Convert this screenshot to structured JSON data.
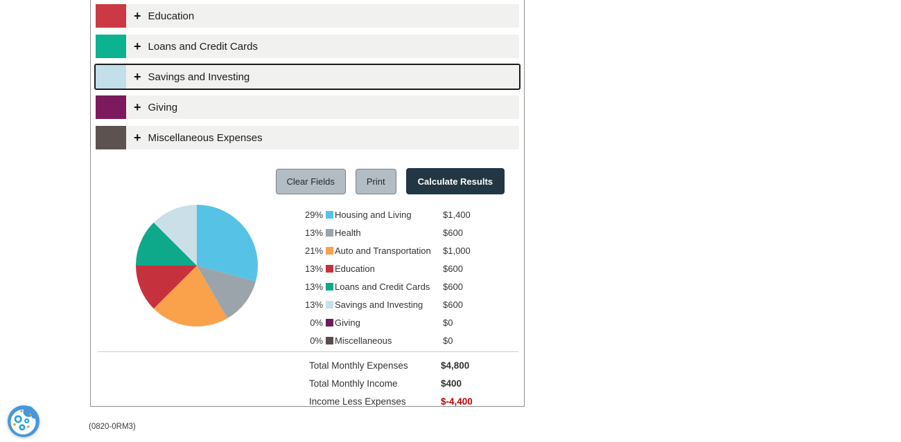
{
  "accordion": {
    "items": [
      {
        "label": "Education",
        "color": "#cb3a44",
        "expand_icon": "+",
        "focused": false
      },
      {
        "label": "Loans and Credit Cards",
        "color": "#0db391",
        "expand_icon": "+",
        "focused": false
      },
      {
        "label": "Savings and Investing",
        "color": "#c3dfe9",
        "expand_icon": "+",
        "focused": true
      },
      {
        "label": "Giving",
        "color": "#7c1a5e",
        "expand_icon": "+",
        "focused": false
      },
      {
        "label": "Miscellaneous Expenses",
        "color": "#5c524f",
        "expand_icon": "+",
        "focused": false
      }
    ]
  },
  "toolbar": {
    "clear_label": "Clear Fields",
    "print_label": "Print",
    "calculate_label": "Calculate Results"
  },
  "chart_data": {
    "type": "pie",
    "title": "",
    "categories": [
      "Housing and Living",
      "Health",
      "Auto and Transportation",
      "Education",
      "Loans and Credit Cards",
      "Savings and Investing",
      "Giving",
      "Miscellaneous"
    ],
    "values": [
      1400,
      600,
      1000,
      600,
      600,
      600,
      0,
      0
    ],
    "percent_labels": [
      "29%",
      "13%",
      "21%",
      "13%",
      "13%",
      "13%",
      "0%",
      "0%"
    ],
    "amount_labels": [
      "$1,400",
      "$600",
      "$1,000",
      "$600",
      "$600",
      "$600",
      "$0",
      "$0"
    ],
    "colors": [
      "#56c3e6",
      "#9ba4ab",
      "#f9a24b",
      "#c5323e",
      "#0ea88b",
      "#cadfe7",
      "#721758",
      "#574d4a"
    ],
    "legend_position": "right",
    "total": 4800
  },
  "totals": [
    {
      "label": "Total Monthly Expenses",
      "value": "$4,800",
      "negative": false
    },
    {
      "label": "Total Monthly Income",
      "value": "$400",
      "negative": false
    },
    {
      "label": "Income Less Expenses",
      "value": "$-4,400",
      "negative": true
    }
  ],
  "footer": {
    "code": "(0820-0RM3)"
  },
  "status_colors": {
    "negative": "#c00000",
    "button_dark": "#223743",
    "button_light": "#b4bcc3"
  }
}
